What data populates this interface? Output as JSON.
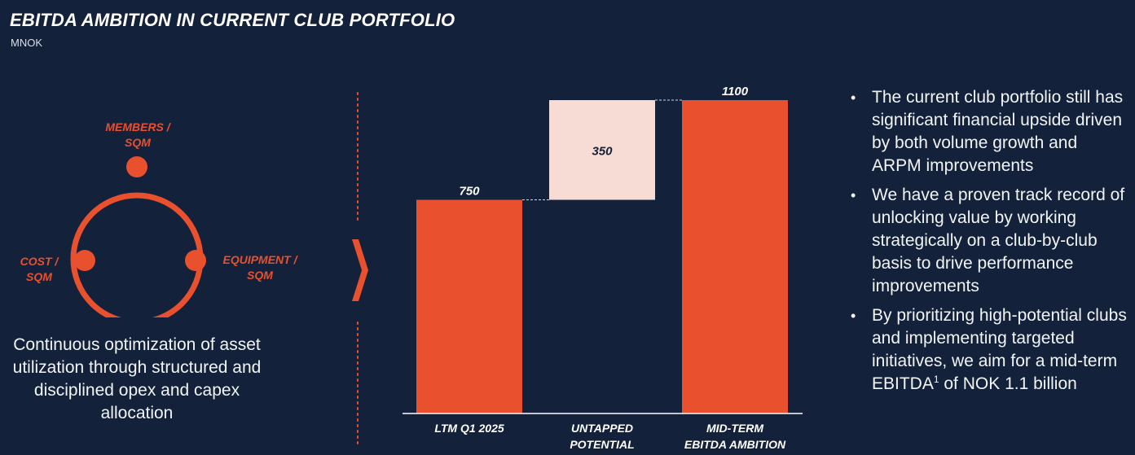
{
  "header": {
    "title": "EBITDA AMBITION IN CURRENT CLUB PORTFOLIO",
    "unit": "MNOK"
  },
  "cycle": {
    "nodes": [
      {
        "label": "MEMBERS /\nSQM"
      },
      {
        "label": "EQUIPMENT /\nSQM"
      },
      {
        "label": "COST /\nSQM"
      }
    ],
    "caption": "Continuous optimization of asset utilization through structured and disciplined opex and capex allocation"
  },
  "chart_data": {
    "type": "bar",
    "subtype": "waterfall",
    "categories": [
      "LTM Q1 2025",
      "UNTAPPED POTENTIAL",
      "MID-TERM EBITDA AMBITION"
    ],
    "category_lines": [
      [
        "LTM Q1 2025"
      ],
      [
        "UNTAPPED",
        "POTENTIAL"
      ],
      [
        "MID-TERM",
        "EBITDA AMBITION"
      ]
    ],
    "values": [
      750,
      350,
      1100
    ],
    "kinds": [
      "total",
      "increment",
      "total"
    ],
    "data_labels": [
      "750",
      "350",
      "1100"
    ],
    "ylim": [
      0,
      1100
    ],
    "grid": false,
    "legend": "none",
    "colors": {
      "total": "#e8502e",
      "increment": "#f7dcd5",
      "connector": "#cfd6e2",
      "axis": "#ffffff"
    }
  },
  "bullets": [
    {
      "text": "The current club portfolio still has significant financial upside driven by both volume growth and ARPM improvements"
    },
    {
      "text": "We have a proven track record of unlocking value by working strategically on a club-by-club basis to drive performance improvements"
    },
    {
      "text_before": "By prioritizing high-potential clubs and implementing targeted initiatives, we aim for a mid-term EBITDA",
      "sup": "1",
      "text_after": " of NOK 1.1 billion"
    }
  ],
  "theme": {
    "background": "#14213a",
    "accent": "#e8502e"
  },
  "icons": {
    "chevron": "chevron-right-icon",
    "bullet": "bullet-dot-icon"
  }
}
